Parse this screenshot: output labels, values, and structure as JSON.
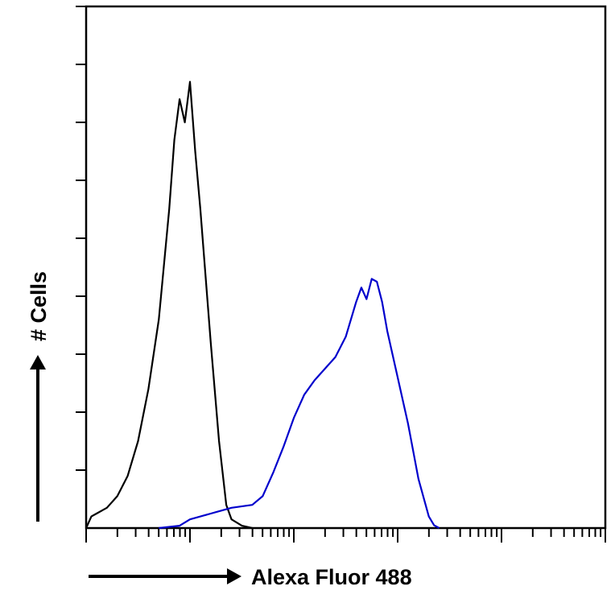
{
  "chart_data": {
    "type": "line",
    "xlabel": "Alexa Fluor 488",
    "ylabel": "# Cells",
    "xscale": "log",
    "x_decades": 5,
    "xlim": [
      0,
      5
    ],
    "ylim": [
      0,
      9
    ],
    "grid": false,
    "legend": "none",
    "series": [
      {
        "color": "#000000",
        "points": [
          [
            0.0,
            0.0
          ],
          [
            0.05,
            0.2
          ],
          [
            0.1,
            0.25
          ],
          [
            0.2,
            0.35
          ],
          [
            0.3,
            0.55
          ],
          [
            0.4,
            0.9
          ],
          [
            0.5,
            1.5
          ],
          [
            0.6,
            2.4
          ],
          [
            0.7,
            3.6
          ],
          [
            0.8,
            5.5
          ],
          [
            0.85,
            6.7
          ],
          [
            0.9,
            7.4
          ],
          [
            0.95,
            7.0
          ],
          [
            1.0,
            7.7
          ],
          [
            1.05,
            6.5
          ],
          [
            1.1,
            5.5
          ],
          [
            1.2,
            3.2
          ],
          [
            1.28,
            1.5
          ],
          [
            1.35,
            0.4
          ],
          [
            1.4,
            0.15
          ],
          [
            1.5,
            0.04
          ],
          [
            1.6,
            0.0
          ]
        ]
      },
      {
        "color": "#0000cc",
        "points": [
          [
            0.7,
            0.0
          ],
          [
            0.9,
            0.04
          ],
          [
            1.0,
            0.15
          ],
          [
            1.2,
            0.25
          ],
          [
            1.4,
            0.35
          ],
          [
            1.6,
            0.4
          ],
          [
            1.7,
            0.55
          ],
          [
            1.8,
            0.95
          ],
          [
            1.9,
            1.4
          ],
          [
            2.0,
            1.9
          ],
          [
            2.1,
            2.3
          ],
          [
            2.2,
            2.55
          ],
          [
            2.3,
            2.75
          ],
          [
            2.4,
            2.95
          ],
          [
            2.5,
            3.3
          ],
          [
            2.6,
            3.9
          ],
          [
            2.65,
            4.15
          ],
          [
            2.7,
            3.95
          ],
          [
            2.75,
            4.3
          ],
          [
            2.8,
            4.25
          ],
          [
            2.85,
            3.9
          ],
          [
            2.9,
            3.4
          ],
          [
            3.0,
            2.6
          ],
          [
            3.1,
            1.8
          ],
          [
            3.2,
            0.85
          ],
          [
            3.3,
            0.2
          ],
          [
            3.35,
            0.05
          ],
          [
            3.4,
            0.0
          ]
        ]
      }
    ]
  }
}
